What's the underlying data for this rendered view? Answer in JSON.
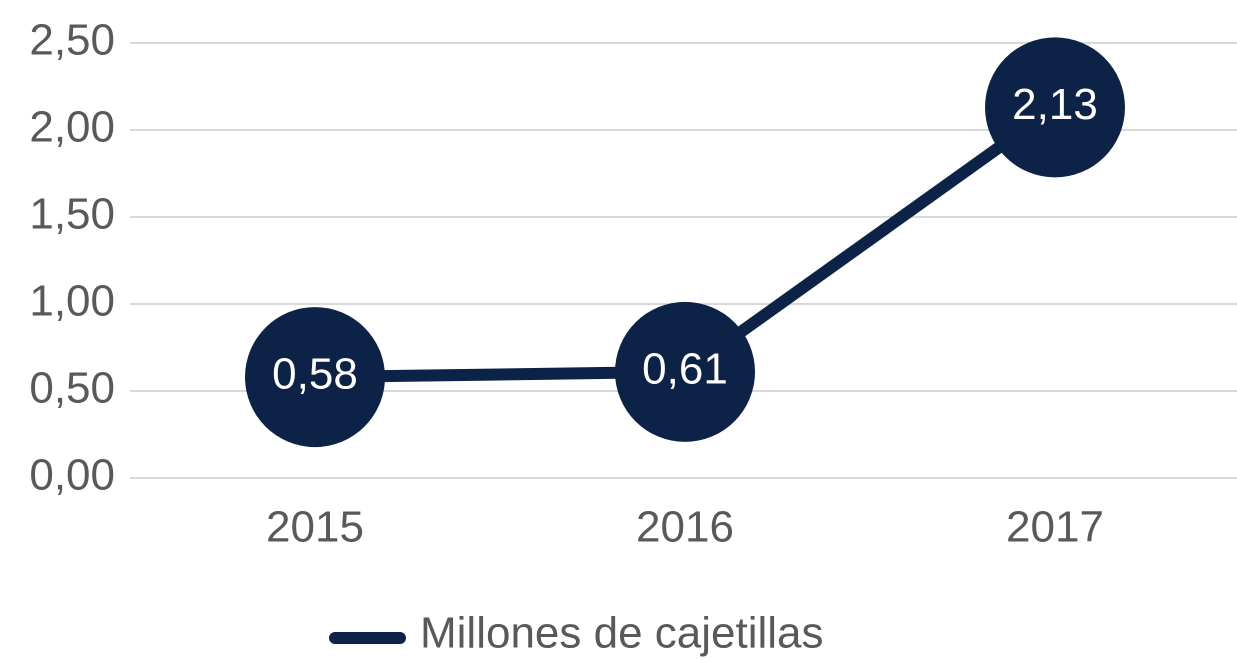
{
  "chart_data": {
    "type": "line",
    "categories": [
      "2015",
      "2016",
      "2017"
    ],
    "series": [
      {
        "name": "Millones de cajetillas",
        "color": "#0c2246",
        "values": [
          0.58,
          0.61,
          2.13
        ],
        "value_labels": [
          "0,58",
          "0,61",
          "2,13"
        ]
      }
    ],
    "ylim": [
      0,
      2.5
    ],
    "yticks": [
      {
        "value": 0,
        "label": "0,00"
      },
      {
        "value": 0.5,
        "label": "0,50"
      },
      {
        "value": 1,
        "label": "1,00"
      },
      {
        "value": 1.5,
        "label": "1,50"
      },
      {
        "value": 2,
        "label": "2,00"
      },
      {
        "value": 2.5,
        "label": "2,50"
      }
    ],
    "grid": true,
    "legend": "bottom"
  }
}
